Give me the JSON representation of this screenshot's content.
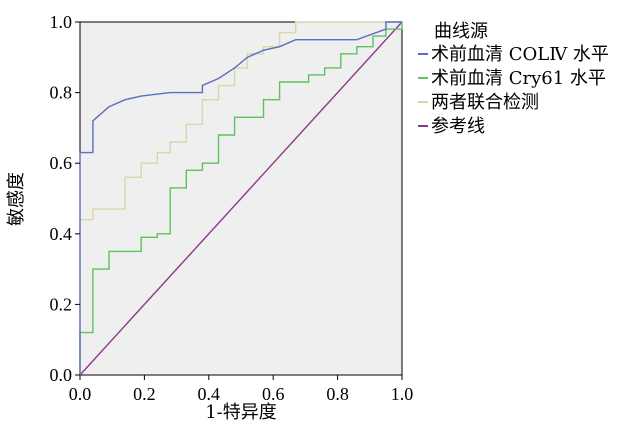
{
  "chart_data": {
    "type": "line",
    "xlabel": "1-特异度",
    "ylabel": "敏感度",
    "xlim": [
      0,
      1
    ],
    "ylim": [
      0,
      1
    ],
    "xticks": [
      "0.0",
      "0.2",
      "0.4",
      "0.6",
      "0.8",
      "1.0"
    ],
    "yticks": [
      "0.0",
      "0.2",
      "0.4",
      "0.6",
      "0.8",
      "1.0"
    ],
    "grid": false,
    "legend_title": "曲线源",
    "legend_position": "right",
    "series": [
      {
        "name": "术前血清 COLⅣ 水平",
        "color": "#5b6fbf",
        "points": [
          [
            0,
            0
          ],
          [
            0,
            0.44
          ],
          [
            0,
            0.63
          ],
          [
            0.04,
            0.63
          ],
          [
            0.04,
            0.72
          ],
          [
            0.09,
            0.76
          ],
          [
            0.14,
            0.78
          ],
          [
            0.19,
            0.79
          ],
          [
            0.28,
            0.8
          ],
          [
            0.38,
            0.8
          ],
          [
            0.38,
            0.82
          ],
          [
            0.43,
            0.84
          ],
          [
            0.48,
            0.87
          ],
          [
            0.52,
            0.9
          ],
          [
            0.57,
            0.92
          ],
          [
            0.62,
            0.93
          ],
          [
            0.67,
            0.95
          ],
          [
            0.86,
            0.95
          ],
          [
            0.95,
            0.98
          ],
          [
            0.95,
            1.0
          ],
          [
            1.0,
            1.0
          ]
        ]
      },
      {
        "name": "术前血清 Cry61 水平",
        "color": "#5ec25e",
        "points": [
          [
            0,
            0
          ],
          [
            0,
            0.12
          ],
          [
            0.04,
            0.12
          ],
          [
            0.04,
            0.3
          ],
          [
            0.09,
            0.3
          ],
          [
            0.09,
            0.35
          ],
          [
            0.19,
            0.35
          ],
          [
            0.19,
            0.39
          ],
          [
            0.24,
            0.39
          ],
          [
            0.24,
            0.4
          ],
          [
            0.28,
            0.4
          ],
          [
            0.28,
            0.53
          ],
          [
            0.33,
            0.53
          ],
          [
            0.33,
            0.58
          ],
          [
            0.38,
            0.58
          ],
          [
            0.38,
            0.6
          ],
          [
            0.43,
            0.6
          ],
          [
            0.43,
            0.68
          ],
          [
            0.48,
            0.68
          ],
          [
            0.48,
            0.73
          ],
          [
            0.57,
            0.73
          ],
          [
            0.57,
            0.78
          ],
          [
            0.62,
            0.78
          ],
          [
            0.62,
            0.83
          ],
          [
            0.71,
            0.83
          ],
          [
            0.71,
            0.85
          ],
          [
            0.76,
            0.85
          ],
          [
            0.76,
            0.87
          ],
          [
            0.81,
            0.87
          ],
          [
            0.81,
            0.91
          ],
          [
            0.86,
            0.91
          ],
          [
            0.86,
            0.93
          ],
          [
            0.91,
            0.93
          ],
          [
            0.91,
            0.96
          ],
          [
            0.95,
            0.96
          ],
          [
            0.95,
            0.98
          ],
          [
            1.0,
            0.98
          ],
          [
            1.0,
            1.0
          ]
        ]
      },
      {
        "name": "两者联合检测",
        "color": "#d9d6a8",
        "points": [
          [
            0,
            0
          ],
          [
            0,
            0.44
          ],
          [
            0.04,
            0.44
          ],
          [
            0.04,
            0.47
          ],
          [
            0.14,
            0.47
          ],
          [
            0.14,
            0.56
          ],
          [
            0.19,
            0.56
          ],
          [
            0.19,
            0.6
          ],
          [
            0.24,
            0.6
          ],
          [
            0.24,
            0.63
          ],
          [
            0.28,
            0.63
          ],
          [
            0.28,
            0.66
          ],
          [
            0.33,
            0.66
          ],
          [
            0.33,
            0.71
          ],
          [
            0.38,
            0.71
          ],
          [
            0.38,
            0.78
          ],
          [
            0.43,
            0.78
          ],
          [
            0.43,
            0.82
          ],
          [
            0.48,
            0.82
          ],
          [
            0.48,
            0.87
          ],
          [
            0.52,
            0.87
          ],
          [
            0.52,
            0.91
          ],
          [
            0.57,
            0.91
          ],
          [
            0.57,
            0.93
          ],
          [
            0.62,
            0.93
          ],
          [
            0.62,
            0.97
          ],
          [
            0.67,
            0.97
          ],
          [
            0.67,
            1.0
          ],
          [
            1.0,
            1.0
          ]
        ]
      },
      {
        "name": "参考线",
        "color": "#8b3a8b",
        "points": [
          [
            0,
            0
          ],
          [
            1,
            1
          ]
        ]
      }
    ]
  }
}
